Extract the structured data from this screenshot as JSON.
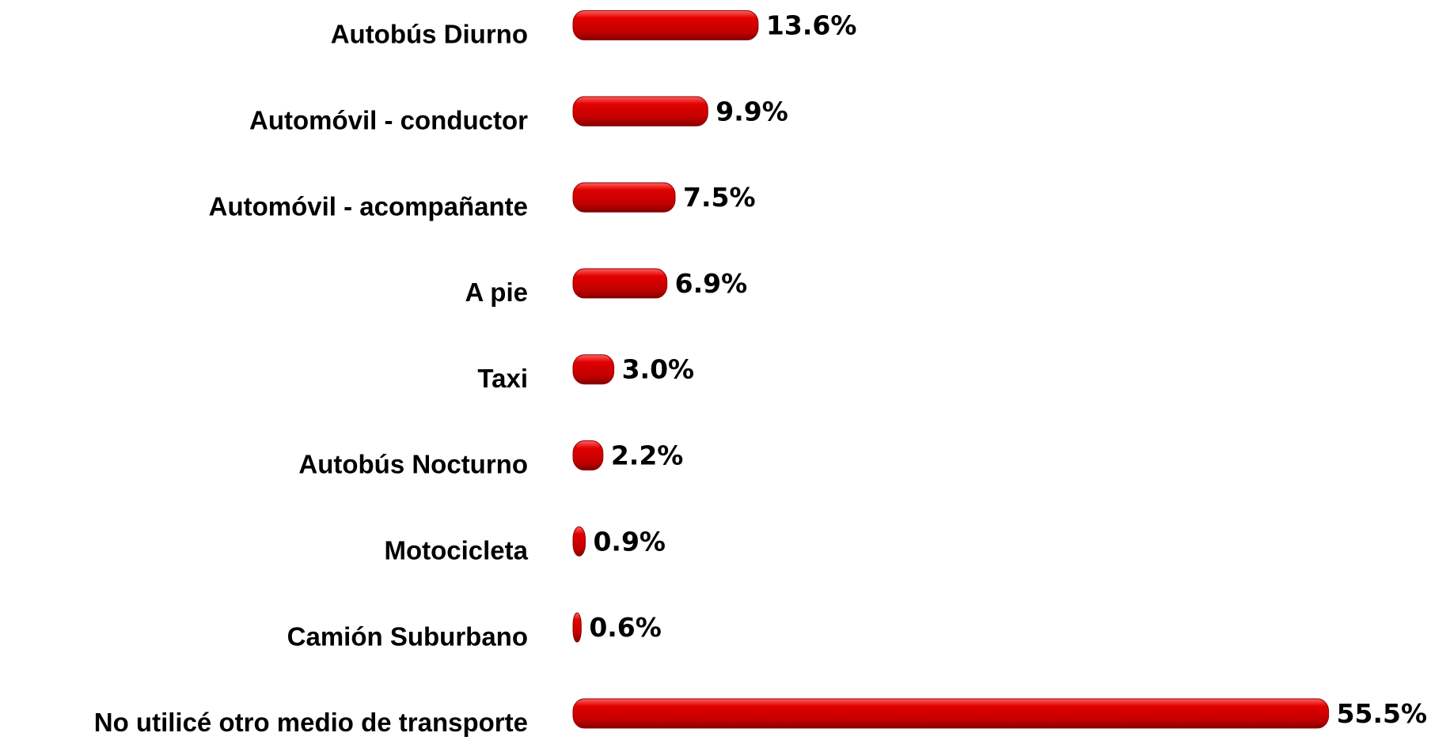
{
  "chart_data": {
    "type": "bar",
    "orientation": "horizontal",
    "categories": [
      "Autobús Diurno",
      "Automóvil - conductor",
      "Automóvil - acompañante",
      "A pie",
      "Taxi",
      "Autobús Nocturno",
      "Motocicleta",
      "Camión Suburbano",
      "No utilicé otro medio de transporte"
    ],
    "values": [
      13.6,
      9.9,
      7.5,
      6.9,
      3.0,
      2.2,
      0.9,
      0.6,
      55.5
    ],
    "value_labels": [
      "13.6%",
      "9.9%",
      "7.5%",
      "6.9%",
      "3.0%",
      "2.2%",
      "0.9%",
      "0.6%",
      "55.5%"
    ],
    "color": "#d00000"
  }
}
